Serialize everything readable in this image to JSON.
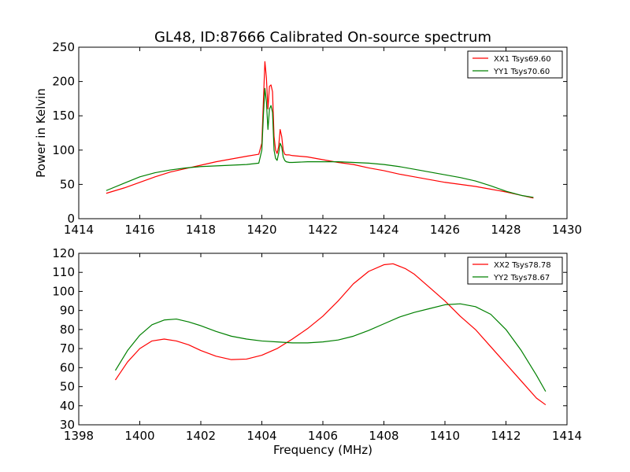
{
  "figure": {
    "title": "GL48, ID:87666 Calibrated On-source spectrum"
  },
  "chart_data": [
    {
      "type": "line",
      "title": "GL48, ID:87666 Calibrated On-source spectrum",
      "xlabel": "",
      "ylabel": "Power in Kelvin",
      "xlim": [
        1414,
        1430
      ],
      "ylim": [
        0,
        250
      ],
      "xticks": [
        1414,
        1416,
        1418,
        1420,
        1422,
        1424,
        1426,
        1428,
        1430
      ],
      "yticks": [
        0,
        50,
        100,
        150,
        200,
        250
      ],
      "grid": false,
      "legend_position": "top-right",
      "series": [
        {
          "name": "XX1 Tsys69.60",
          "color": "#ff0000",
          "x": [
            1414.9,
            1415.5,
            1416.0,
            1416.5,
            1417.0,
            1417.5,
            1418.0,
            1418.5,
            1419.0,
            1419.5,
            1419.9,
            1420.0,
            1420.05,
            1420.1,
            1420.15,
            1420.2,
            1420.25,
            1420.3,
            1420.35,
            1420.4,
            1420.45,
            1420.5,
            1420.55,
            1420.6,
            1420.65,
            1420.7,
            1420.75,
            1420.8,
            1420.9,
            1421.0,
            1421.5,
            1422.0,
            1422.5,
            1423.0,
            1423.5,
            1424.0,
            1424.5,
            1425.0,
            1425.5,
            1426.0,
            1426.5,
            1427.0,
            1427.5,
            1428.0,
            1428.5,
            1428.9
          ],
          "y": [
            37,
            45,
            53,
            61,
            68,
            73,
            78,
            83,
            87,
            91,
            94,
            110,
            170,
            229,
            205,
            160,
            193,
            195,
            185,
            120,
            100,
            95,
            105,
            130,
            120,
            100,
            94,
            93,
            93,
            92,
            90,
            86,
            82,
            79,
            74,
            70,
            65,
            61,
            57,
            53,
            50,
            47,
            43,
            39,
            34,
            30
          ]
        },
        {
          "name": "YY1 Tsys70.60",
          "color": "#008000",
          "x": [
            1414.9,
            1415.5,
            1416.0,
            1416.5,
            1417.0,
            1417.5,
            1418.0,
            1418.5,
            1419.0,
            1419.5,
            1419.9,
            1420.0,
            1420.05,
            1420.1,
            1420.15,
            1420.2,
            1420.25,
            1420.3,
            1420.35,
            1420.4,
            1420.45,
            1420.5,
            1420.55,
            1420.6,
            1420.65,
            1420.7,
            1420.75,
            1420.8,
            1420.9,
            1421.0,
            1421.5,
            1422.0,
            1422.5,
            1423.0,
            1423.5,
            1424.0,
            1424.5,
            1425.0,
            1425.5,
            1426.0,
            1426.5,
            1427.0,
            1427.5,
            1428.0,
            1428.5,
            1428.9
          ],
          "y": [
            41,
            52,
            61,
            67,
            71,
            74,
            76,
            77,
            78,
            79,
            81,
            100,
            150,
            190,
            170,
            130,
            160,
            165,
            155,
            100,
            88,
            85,
            95,
            110,
            105,
            90,
            85,
            83,
            82,
            82,
            83,
            83,
            83,
            82,
            81,
            79,
            76,
            72,
            68,
            64,
            60,
            55,
            48,
            40,
            34,
            31
          ]
        }
      ]
    },
    {
      "type": "line",
      "title": "",
      "xlabel": "Frequency (MHz)",
      "ylabel": "",
      "xlim": [
        1398,
        1414
      ],
      "ylim": [
        30,
        120
      ],
      "xticks": [
        1398,
        1400,
        1402,
        1404,
        1406,
        1408,
        1410,
        1412,
        1414
      ],
      "yticks": [
        30,
        40,
        50,
        60,
        70,
        80,
        90,
        100,
        110,
        120
      ],
      "grid": false,
      "legend_position": "top-right",
      "series": [
        {
          "name": "XX2 Tsys78.78",
          "color": "#ff0000",
          "x": [
            1399.2,
            1399.6,
            1400.0,
            1400.4,
            1400.8,
            1401.2,
            1401.6,
            1402.0,
            1402.5,
            1403.0,
            1403.5,
            1404.0,
            1404.5,
            1405.0,
            1405.5,
            1406.0,
            1406.5,
            1407.0,
            1407.5,
            1408.0,
            1408.3,
            1408.7,
            1409.0,
            1409.5,
            1410.0,
            1410.5,
            1411.0,
            1411.5,
            1412.0,
            1412.5,
            1413.0,
            1413.3
          ],
          "y": [
            53.5,
            63,
            70,
            74,
            75,
            74,
            72,
            69,
            66,
            64.2,
            64.5,
            66.5,
            70,
            75,
            80.5,
            87,
            95,
            104,
            110.5,
            114,
            114.5,
            112,
            109,
            102,
            95,
            87,
            80,
            71,
            62,
            53,
            44,
            40.5
          ]
        },
        {
          "name": "YY2 Tsys78.67",
          "color": "#008000",
          "x": [
            1399.2,
            1399.6,
            1400.0,
            1400.4,
            1400.8,
            1401.2,
            1401.6,
            1402.0,
            1402.5,
            1403.0,
            1403.5,
            1404.0,
            1404.5,
            1405.0,
            1405.5,
            1406.0,
            1406.5,
            1407.0,
            1407.5,
            1408.0,
            1408.5,
            1409.0,
            1409.5,
            1410.0,
            1410.5,
            1411.0,
            1411.5,
            1412.0,
            1412.5,
            1413.0,
            1413.3
          ],
          "y": [
            58.5,
            69,
            77,
            82.5,
            85,
            85.5,
            84,
            82,
            79,
            76.5,
            75,
            74,
            73.5,
            73,
            73,
            73.5,
            74.5,
            76.5,
            79.5,
            83,
            86.5,
            89,
            91,
            93,
            93.5,
            92,
            88,
            80,
            69,
            56,
            47.5
          ]
        }
      ]
    }
  ]
}
